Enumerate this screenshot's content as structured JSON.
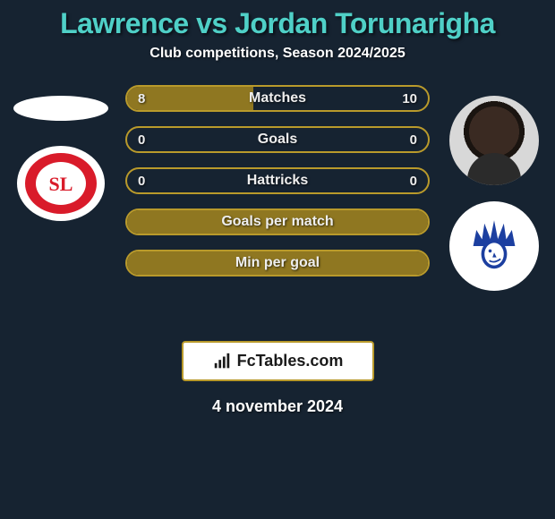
{
  "title": "Lawrence vs Jordan Torunarigha",
  "title_color": "#4fd0c7",
  "title_fontsize": 32,
  "subtitle": "Club competitions, Season 2024/2025",
  "subtitle_color": "#ffffff",
  "subtitle_fontsize": 16,
  "background_color": "#162331",
  "bar_border_color": "#b99a2b",
  "bar_fill_color": "#8f7721",
  "bar_empty_color": "transparent",
  "bar_text_color": "#eeeeee",
  "bar_label_fontsize": 16,
  "bar_value_fontsize": 15,
  "bars": [
    {
      "label": "Matches",
      "left": "8",
      "right": "10",
      "left_pct": 42,
      "right_pct": 0
    },
    {
      "label": "Goals",
      "left": "0",
      "right": "0",
      "left_pct": 0,
      "right_pct": 0
    },
    {
      "label": "Hattricks",
      "left": "0",
      "right": "0",
      "left_pct": 0,
      "right_pct": 0
    },
    {
      "label": "Goals per match",
      "left": "",
      "right": "",
      "left_pct": 100,
      "right_pct": 0
    },
    {
      "label": "Min per goal",
      "left": "",
      "right": "",
      "left_pct": 100,
      "right_pct": 0
    }
  ],
  "left_club": {
    "name": "Standard Liège",
    "primary": "#d91b2a",
    "secondary": "#ffffff"
  },
  "right_club": {
    "name": "Gent",
    "primary": "#1c3fa0",
    "secondary": "#ffffff"
  },
  "watermark": "FcTables.com",
  "watermark_fontsize": 18,
  "date": "4 november 2024",
  "date_fontsize": 18
}
